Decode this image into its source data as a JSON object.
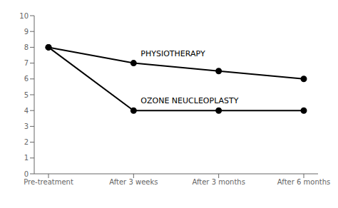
{
  "chart_data": {
    "type": "line",
    "categories": [
      "Pre-treatment",
      "After 3 weeks",
      "After 3 months",
      "After 6 months"
    ],
    "series": [
      {
        "color": "#000000",
        "marker": "circle",
        "line_style": "solid",
        "values": [
          8,
          7,
          6.5,
          6
        ]
      },
      {
        "color": "#000000",
        "marker": "circle",
        "line_style": "solid",
        "values": [
          8,
          4,
          4,
          4
        ]
      }
    ],
    "annotations": [
      "PHYSIOTHERAPY",
      "OZONE NEUCLEOPLASTY"
    ],
    "ylim": [
      0,
      10
    ],
    "yticks": [
      0,
      1,
      2,
      3,
      4,
      5,
      6,
      7,
      8,
      9,
      10
    ],
    "grid": false
  }
}
